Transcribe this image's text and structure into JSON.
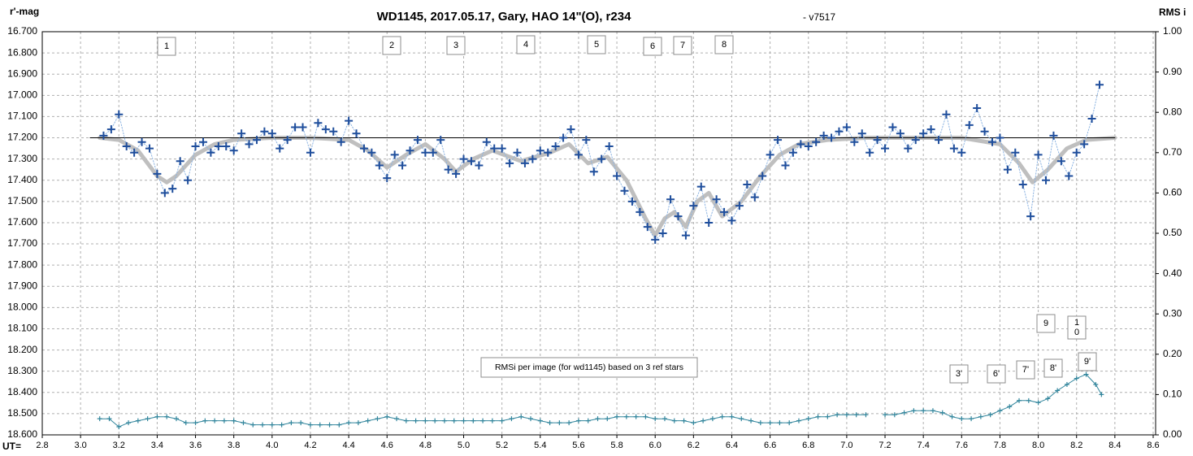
{
  "chart_data": {
    "type": "line",
    "title": "WD1145, 2017.05.17,  Gary, HAO 14\"(O), r234",
    "subtitle": "- v7517",
    "y_label": "r'-mag",
    "y2_label": "RMS i",
    "x_label": "UT=",
    "grid": true,
    "xlim": [
      2.8,
      8.6
    ],
    "xticks": [
      2.8,
      {
        "value": 3,
        "label": "3.0"
      },
      3.2,
      3.4,
      3.6,
      3.8,
      {
        "value": 4,
        "label": "4.0"
      },
      4.2,
      4.4,
      4.6,
      4.8,
      {
        "value": 5,
        "label": "5.0"
      },
      5.2,
      5.4,
      5.6,
      5.8,
      {
        "value": 6,
        "label": "6.0"
      },
      6.2,
      6.4,
      6.6,
      6.8,
      {
        "value": 7,
        "label": "7.0"
      },
      7.2,
      7.4,
      7.6,
      7.8,
      {
        "value": 8,
        "label": "8.0"
      },
      8.2,
      8.4,
      8.6
    ],
    "ylim": [
      18.6,
      16.7
    ],
    "yticks": [
      {
        "value": 16.7,
        "label": "16.700"
      },
      {
        "value": 16.8,
        "label": "16.800"
      },
      {
        "value": 16.9,
        "label": "16.900"
      },
      {
        "value": 17.0,
        "label": "17.000"
      },
      {
        "value": 17.1,
        "label": "17.100"
      },
      {
        "value": 17.2,
        "label": "17.200"
      },
      {
        "value": 17.3,
        "label": "17.300"
      },
      {
        "value": 17.4,
        "label": "17.400"
      },
      {
        "value": 17.5,
        "label": "17.500"
      },
      {
        "value": 17.6,
        "label": "17.600"
      },
      {
        "value": 17.7,
        "label": "17.700"
      },
      {
        "value": 17.8,
        "label": "17.800"
      },
      {
        "value": 17.9,
        "label": "17.900"
      },
      {
        "value": 18.0,
        "label": "18.000"
      },
      {
        "value": 18.1,
        "label": "18.100"
      },
      {
        "value": 18.2,
        "label": "18.200"
      },
      {
        "value": 18.3,
        "label": "18.300"
      },
      {
        "value": 18.4,
        "label": "18.400"
      },
      {
        "value": 18.5,
        "label": "18.500"
      },
      {
        "value": 18.6,
        "label": "18.600"
      }
    ],
    "y2lim": [
      0,
      1
    ],
    "y2ticks": [
      {
        "value": 1,
        "label": "1.00"
      },
      {
        "value": 0.9,
        "label": "0.90"
      },
      {
        "value": 0.8,
        "label": "0.80"
      },
      {
        "value": 0.7,
        "label": "0.70"
      },
      {
        "value": 0.6,
        "label": "0.60"
      },
      {
        "value": 0.5,
        "label": "0.50"
      },
      {
        "value": 0.4,
        "label": "0.40"
      },
      {
        "value": 0.3,
        "label": "0.30"
      },
      {
        "value": 0.2,
        "label": "0.20"
      },
      {
        "value": 0.1,
        "label": "0.10"
      },
      {
        "value": 0,
        "label": "0.00"
      }
    ],
    "annotations": [
      "1",
      "2",
      "3",
      "4",
      "5",
      "6",
      "7",
      "8",
      "9",
      "10",
      "3'",
      "6'",
      "7'",
      "8'",
      "9'"
    ],
    "note": "RMSi per image (for wd1145) based on 3 ref stars",
    "series": [
      {
        "color": "#bfbfbf",
        "line": "solid",
        "width": 5,
        "x": [
          3.1,
          3.2,
          3.3,
          3.4,
          3.45,
          3.5,
          3.6,
          3.7,
          3.8,
          4.0,
          4.2,
          4.4,
          4.5,
          4.6,
          4.7,
          4.8,
          4.9,
          4.96,
          5.05,
          5.15,
          5.3,
          5.45,
          5.55,
          5.65,
          5.75,
          5.85,
          5.95,
          6.0,
          6.05,
          6.1,
          6.16,
          6.22,
          6.28,
          6.35,
          6.45,
          6.55,
          6.65,
          6.75,
          6.9,
          7.1,
          7.6,
          7.8,
          7.9,
          7.97,
          8.05,
          8.15,
          8.25,
          8.4
        ],
        "values": [
          17.2,
          17.21,
          17.26,
          17.38,
          17.41,
          17.38,
          17.28,
          17.23,
          17.21,
          17.2,
          17.2,
          17.21,
          17.26,
          17.34,
          17.28,
          17.23,
          17.3,
          17.36,
          17.3,
          17.26,
          17.31,
          17.27,
          17.23,
          17.32,
          17.29,
          17.4,
          17.58,
          17.66,
          17.58,
          17.55,
          17.62,
          17.5,
          17.46,
          17.57,
          17.5,
          17.38,
          17.28,
          17.23,
          17.21,
          17.2,
          17.2,
          17.23,
          17.32,
          17.41,
          17.35,
          17.25,
          17.21,
          17.2
        ]
      },
      {
        "color": "#000000",
        "line": "solid",
        "width": 1,
        "x": [
          3.05,
          8.4
        ],
        "values": [
          17.2,
          17.2
        ]
      },
      {
        "color": "#1f4e9c",
        "line": "dotted",
        "line_color": "#8db4e2",
        "width": 1,
        "marker": "cross",
        "marker_size": 5,
        "x": [
          3.12,
          3.16,
          3.2,
          3.24,
          3.28,
          3.32,
          3.36,
          3.4,
          3.44,
          3.48,
          3.52,
          3.56,
          3.6,
          3.64,
          3.68,
          3.72,
          3.76,
          3.8,
          3.84,
          3.88,
          3.92,
          3.96,
          4.0,
          4.04,
          4.08,
          4.12,
          4.16,
          4.2,
          4.24,
          4.28,
          4.32,
          4.36,
          4.4,
          4.44,
          4.48,
          4.52,
          4.56,
          4.6,
          4.64,
          4.68,
          4.72,
          4.76,
          4.8,
          4.84,
          4.88,
          4.92,
          4.96,
          5.0,
          5.04,
          5.08,
          5.12,
          5.16,
          5.2,
          5.24,
          5.28,
          5.32,
          5.36,
          5.4,
          5.44,
          5.48,
          5.52,
          5.56,
          5.6,
          5.64,
          5.68,
          5.72,
          5.76,
          5.8,
          5.84,
          5.88,
          5.92,
          5.96,
          6.0,
          6.04,
          6.08,
          6.12,
          6.16,
          6.2,
          6.24,
          6.28,
          6.32,
          6.36,
          6.4,
          6.44,
          6.48,
          6.52,
          6.56,
          6.6,
          6.64,
          6.68,
          6.72,
          6.76,
          6.8,
          6.84,
          6.88,
          6.92,
          6.96,
          7.0,
          7.04,
          7.08,
          7.12,
          7.16,
          7.2,
          7.24,
          7.28,
          7.32,
          7.36,
          7.4,
          7.44,
          7.48,
          7.52,
          7.56,
          7.6,
          7.64,
          7.68,
          7.72,
          7.76,
          7.8,
          7.84,
          7.88,
          7.92,
          7.96,
          8.0,
          8.04,
          8.08,
          8.12,
          8.16,
          8.2,
          8.24,
          8.28,
          8.32
        ],
        "values": [
          17.19,
          17.16,
          17.09,
          17.24,
          17.27,
          17.22,
          17.25,
          17.37,
          17.46,
          17.44,
          17.31,
          17.4,
          17.24,
          17.22,
          17.27,
          17.24,
          17.24,
          17.26,
          17.18,
          17.23,
          17.21,
          17.17,
          17.18,
          17.25,
          17.21,
          17.15,
          17.15,
          17.27,
          17.13,
          17.16,
          17.17,
          17.22,
          17.12,
          17.18,
          17.25,
          17.27,
          17.33,
          17.39,
          17.28,
          17.33,
          17.26,
          17.21,
          17.27,
          17.27,
          17.21,
          17.35,
          17.37,
          17.3,
          17.31,
          17.33,
          17.22,
          17.25,
          17.25,
          17.32,
          17.27,
          17.32,
          17.3,
          17.26,
          17.27,
          17.24,
          17.2,
          17.16,
          17.28,
          17.21,
          17.36,
          17.3,
          17.24,
          17.38,
          17.45,
          17.5,
          17.55,
          17.62,
          17.68,
          17.65,
          17.49,
          17.57,
          17.66,
          17.52,
          17.43,
          17.6,
          17.49,
          17.55,
          17.59,
          17.52,
          17.42,
          17.48,
          17.38,
          17.28,
          17.21,
          17.33,
          17.27,
          17.23,
          17.24,
          17.22,
          17.19,
          17.2,
          17.17,
          17.15,
          17.22,
          17.18,
          17.27,
          17.21,
          17.25,
          17.15,
          17.18,
          17.25,
          17.21,
          17.18,
          17.16,
          17.21,
          17.09,
          17.25,
          17.27,
          17.14,
          17.06,
          17.17,
          17.22,
          17.2,
          17.35,
          17.27,
          17.42,
          17.57,
          17.28,
          17.4,
          17.19,
          17.31,
          17.38,
          17.27,
          17.23,
          17.11,
          16.95
        ]
      },
      {
        "color": "#31859c",
        "line": "solid",
        "width": 1,
        "marker": "cross",
        "marker_size": 3,
        "axis": "y2",
        "x": [
          3.1,
          3.15,
          3.2,
          3.25,
          3.3,
          3.35,
          3.4,
          3.45,
          3.5,
          3.55,
          3.6,
          3.65,
          3.7,
          3.75,
          3.8,
          3.85,
          3.9,
          3.95,
          4.0,
          4.05,
          4.1,
          4.15,
          4.2,
          4.25,
          4.3,
          4.35,
          4.4,
          4.45,
          4.5,
          4.55,
          4.6,
          4.65,
          4.7,
          4.75,
          4.8,
          4.85,
          4.9,
          4.95,
          5.0,
          5.05,
          5.1,
          5.15,
          5.2,
          5.25,
          5.3,
          5.35,
          5.4,
          5.45,
          5.5,
          5.55,
          5.6,
          5.65,
          5.7,
          5.75,
          5.8,
          5.85,
          5.9,
          5.95,
          6.0,
          6.05,
          6.1,
          6.15,
          6.2,
          6.25,
          6.3,
          6.35,
          6.4,
          6.45,
          6.5,
          6.55,
          6.6,
          6.65,
          6.7,
          6.75,
          6.8,
          6.85,
          6.9,
          6.95,
          7.0,
          7.05,
          7.1,
          7.15,
          7.2,
          7.25,
          7.3,
          7.35,
          7.4,
          7.45,
          7.5,
          7.55,
          7.6,
          7.65,
          7.7,
          7.75,
          7.8,
          7.85,
          7.9,
          7.95,
          8.0,
          8.05,
          8.1,
          8.15,
          8.2,
          8.25,
          8.3,
          8.33
        ],
        "values": [
          0.04,
          0.04,
          0.02,
          0.03,
          0.035,
          0.04,
          0.045,
          0.045,
          0.04,
          0.03,
          0.03,
          0.035,
          0.035,
          0.035,
          0.035,
          0.03,
          0.025,
          0.025,
          0.025,
          0.025,
          0.03,
          0.03,
          0.025,
          0.025,
          0.025,
          0.025,
          0.03,
          0.03,
          0.035,
          0.04,
          0.045,
          0.04,
          0.035,
          0.035,
          0.035,
          0.035,
          0.035,
          0.035,
          0.035,
          0.035,
          0.035,
          0.035,
          0.035,
          0.04,
          0.045,
          0.04,
          0.035,
          0.03,
          0.03,
          0.03,
          0.035,
          0.035,
          0.04,
          0.04,
          0.045,
          0.045,
          0.045,
          0.045,
          0.04,
          0.04,
          0.035,
          0.035,
          0.03,
          0.035,
          0.04,
          0.045,
          0.045,
          0.04,
          0.035,
          0.03,
          0.03,
          0.03,
          0.03,
          0.035,
          0.04,
          0.045,
          0.045,
          0.05,
          0.05,
          0.05,
          0.05,
          null,
          0.05,
          0.05,
          0.055,
          0.06,
          0.06,
          0.06,
          0.055,
          0.045,
          0.04,
          0.04,
          0.045,
          0.05,
          0.06,
          0.07,
          0.085,
          0.085,
          0.08,
          0.09,
          0.11,
          0.125,
          0.14,
          0.15,
          0.125,
          0.1
        ]
      }
    ]
  }
}
